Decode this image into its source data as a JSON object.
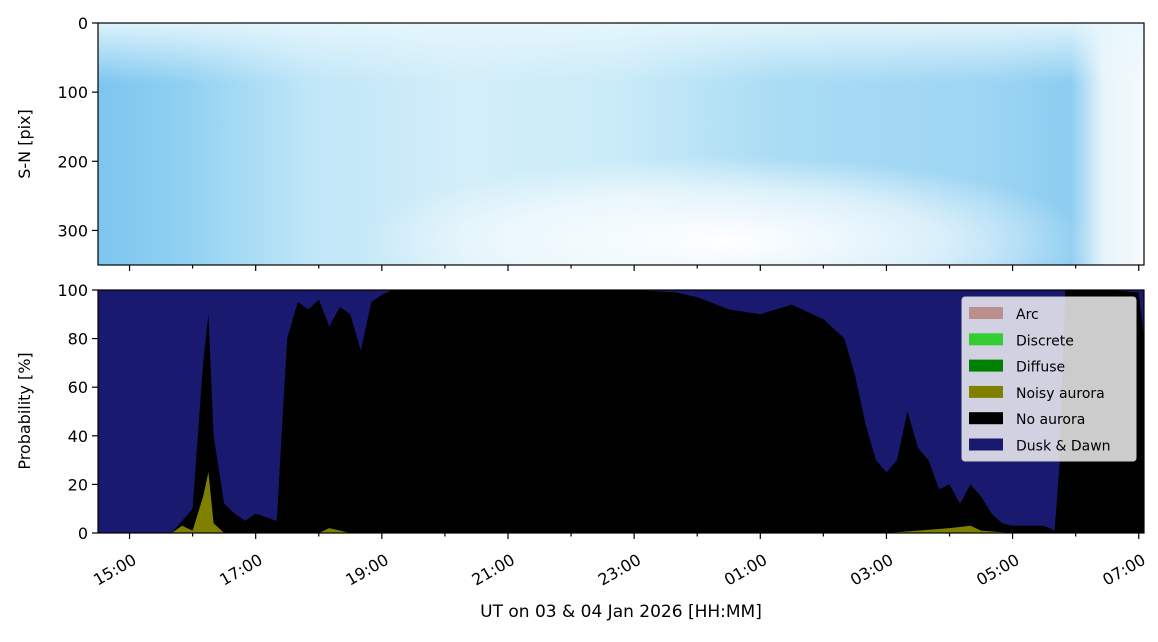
{
  "chart_data": [
    {
      "type": "heatmap",
      "title": "",
      "ylabel": "S-N [pix]",
      "ylim": [
        350,
        0
      ],
      "yticks": [
        0,
        100,
        200,
        300
      ],
      "x_range": [
        "2026-01-03T14:30",
        "2026-01-04T07:05"
      ],
      "colormap_note": "light blue all-sky keogram, brighter (white) near 21:00-23:00 lower half and after 05:30",
      "colors": {
        "base": "#8ecdf0",
        "bright": "#ffffff",
        "mid": "#c5e8f8"
      }
    },
    {
      "type": "area",
      "stacked": true,
      "ylabel": "Probability [%]",
      "xlabel": "UT on 03 & 04 Jan 2026 [HH:MM]",
      "ylim": [
        0,
        100
      ],
      "yticks": [
        0,
        20,
        40,
        60,
        80,
        100
      ],
      "x_range": [
        "2026-01-03T14:30",
        "2026-01-04T07:05"
      ],
      "xticks": [
        "15:00",
        "17:00",
        "19:00",
        "21:00",
        "23:00",
        "01:00",
        "03:00",
        "05:00",
        "07:00"
      ],
      "legend_position": "upper right",
      "series": [
        {
          "name": "Arc",
          "color": "#bc8f8f"
        },
        {
          "name": "Discrete",
          "color": "#32cd32"
        },
        {
          "name": "Diffuse",
          "color": "#008000"
        },
        {
          "name": "Noisy aurora",
          "color": "#808000",
          "x": [
            "14:30",
            "15:40",
            "15:50",
            "16:00",
            "16:10",
            "16:15",
            "16:20",
            "16:30",
            "17:00",
            "17:30",
            "18:00",
            "18:10",
            "18:30",
            "20:00",
            "23:00",
            "02:00",
            "03:00",
            "03:30",
            "04:00",
            "04:20",
            "04:30",
            "05:00",
            "07:05"
          ],
          "values": [
            0,
            0,
            3,
            1,
            15,
            25,
            4,
            0,
            0,
            0,
            0,
            2,
            0,
            0,
            0,
            0,
            0,
            1,
            2,
            3,
            1,
            0,
            0
          ]
        },
        {
          "name": "No aurora",
          "color": "#000000",
          "x": [
            "14:30",
            "15:40",
            "15:50",
            "16:00",
            "16:10",
            "16:15",
            "16:20",
            "16:30",
            "16:40",
            "16:50",
            "17:00",
            "17:20",
            "17:30",
            "17:40",
            "17:50",
            "18:00",
            "18:10",
            "18:20",
            "18:30",
            "18:40",
            "18:50",
            "19:00",
            "19:10",
            "20:00",
            "21:00",
            "22:00",
            "23:00",
            "23:40",
            "00:00",
            "00:30",
            "01:00",
            "01:30",
            "02:00",
            "02:20",
            "02:30",
            "02:40",
            "02:50",
            "03:00",
            "03:10",
            "03:20",
            "03:30",
            "03:40",
            "03:50",
            "04:00",
            "04:10",
            "04:20",
            "04:30",
            "04:40",
            "04:50",
            "05:00",
            "05:30",
            "05:40",
            "05:45",
            "05:50",
            "06:00",
            "06:30",
            "07:00",
            "07:05"
          ],
          "values": [
            0,
            0,
            5,
            10,
            70,
            90,
            40,
            12,
            8,
            5,
            8,
            5,
            80,
            95,
            92,
            96,
            85,
            93,
            90,
            75,
            95,
            98,
            100,
            100,
            100,
            100,
            100,
            99,
            97,
            92,
            90,
            94,
            88,
            80,
            65,
            45,
            30,
            25,
            30,
            50,
            35,
            30,
            18,
            20,
            12,
            20,
            15,
            8,
            4,
            3,
            3,
            1,
            30,
            100,
            100,
            100,
            99,
            80
          ]
        },
        {
          "name": "Dusk & Dawn",
          "color": "#191970",
          "values_note": "remainder to 100%"
        }
      ]
    }
  ]
}
